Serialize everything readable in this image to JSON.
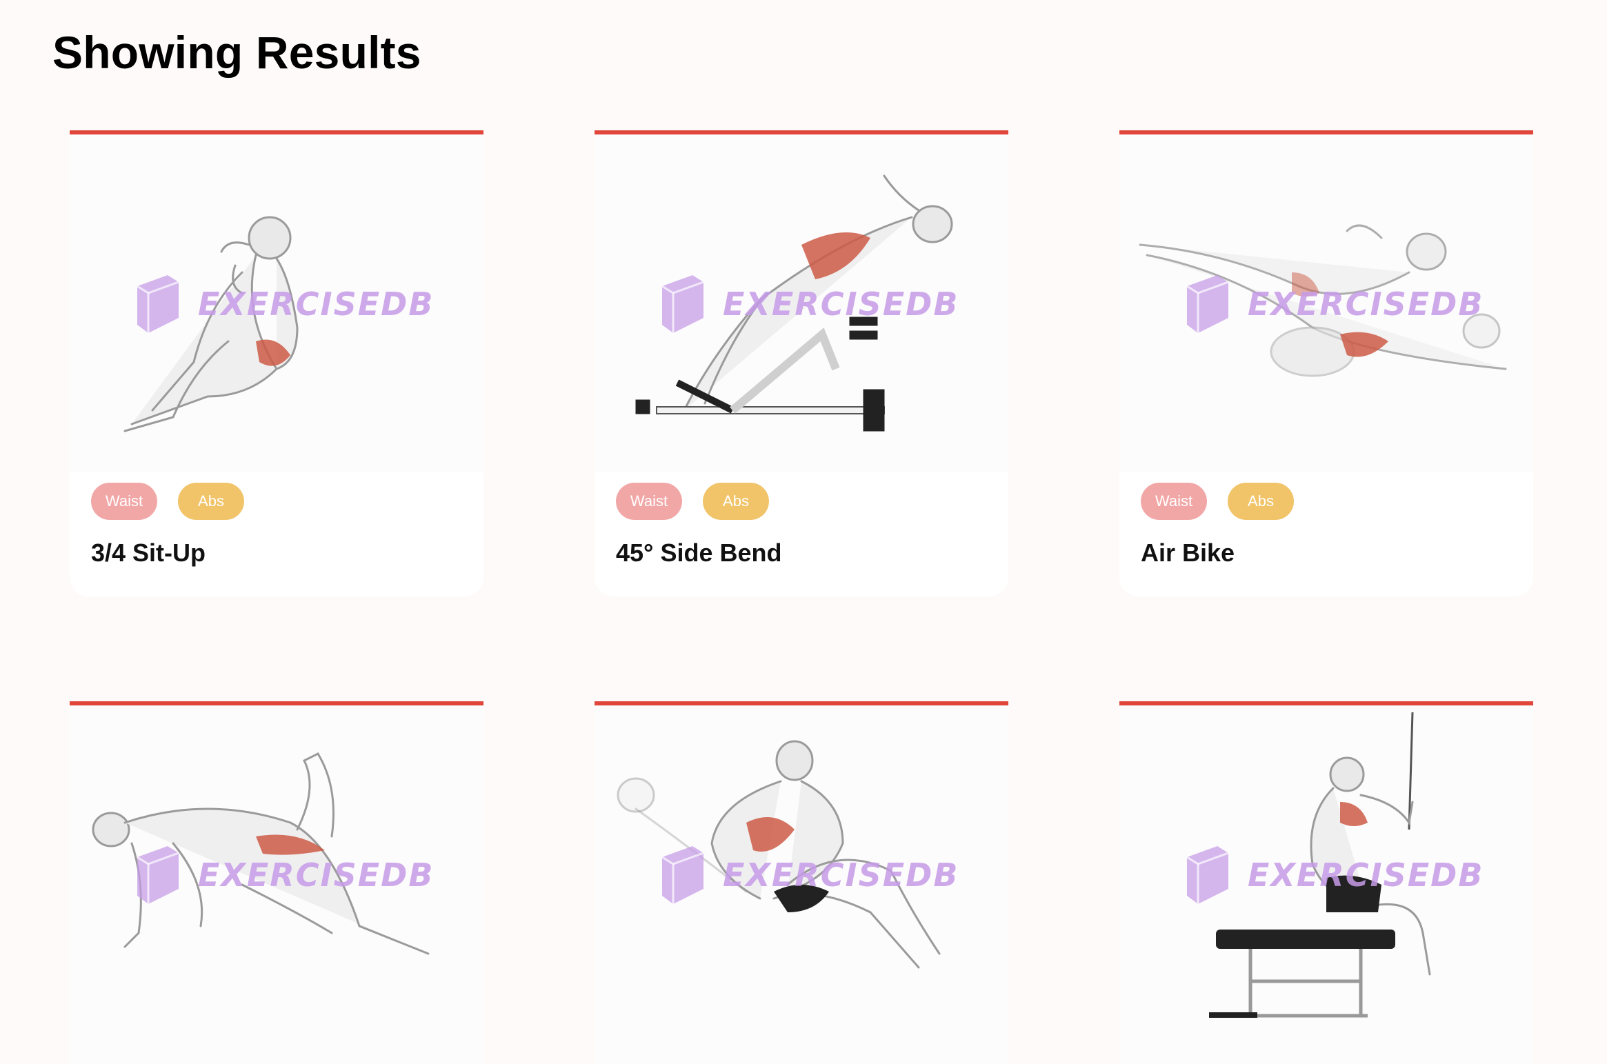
{
  "page": {
    "title": "Showing Results"
  },
  "watermark": {
    "text": "EXERCISEDB"
  },
  "colors": {
    "accent_border": "#e0463a",
    "tag_waist": "#f2a7a7",
    "tag_abs": "#f1c469",
    "watermark": "#c69be8",
    "background": "#fffafa"
  },
  "cards": [
    {
      "name": "3/4 Sit-Up",
      "tags": [
        "Waist",
        "Abs"
      ],
      "image_icon": "sit-up-figure"
    },
    {
      "name": "45° Side Bend",
      "tags": [
        "Waist",
        "Abs"
      ],
      "image_icon": "side-bend-figure"
    },
    {
      "name": "Air Bike",
      "tags": [
        "Waist",
        "Abs"
      ],
      "image_icon": "air-bike-figure"
    },
    {
      "name": "",
      "tags": [],
      "image_icon": "kneeling-stretch-figure"
    },
    {
      "name": "",
      "tags": [],
      "image_icon": "reclined-crunch-figure"
    },
    {
      "name": "",
      "tags": [],
      "image_icon": "cable-bench-figure"
    }
  ]
}
